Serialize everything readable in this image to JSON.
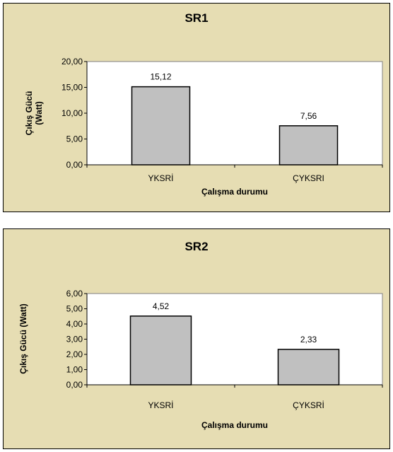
{
  "chart_data": [
    {
      "type": "bar",
      "title": "SR1",
      "xlabel": "Çalışma durumu",
      "ylabel_lines": [
        "Çıkış Gücü",
        "(Watt)"
      ],
      "categories": [
        "YKSRİ",
        "ÇYKSRI"
      ],
      "values": [
        15.12,
        7.56
      ],
      "data_labels": [
        "15,12",
        "7,56"
      ],
      "ylim": [
        0,
        20
      ],
      "yticks": [
        0,
        5,
        10,
        15,
        20
      ],
      "ytick_labels": [
        "0,00",
        "5,00",
        "10,00",
        "15,00",
        "20,00"
      ],
      "grid": false,
      "legend": "none",
      "colors": {
        "bar": "#c0c0c0",
        "plot_bg": "#ffffff",
        "panel_bg": "#e6ddb3"
      }
    },
    {
      "type": "bar",
      "title": "SR2",
      "xlabel": "Çalışma durumu",
      "ylabel_lines": [
        "Çıkış Gücü (Watt)"
      ],
      "categories": [
        "YKSRİ",
        "ÇYKSRİ"
      ],
      "values": [
        4.52,
        2.33
      ],
      "data_labels": [
        "4,52",
        "2,33"
      ],
      "ylim": [
        0,
        6
      ],
      "yticks": [
        0,
        1,
        2,
        3,
        4,
        5,
        6
      ],
      "ytick_labels": [
        "0,00",
        "1,00",
        "2,00",
        "3,00",
        "4,00",
        "5,00",
        "6,00"
      ],
      "grid": false,
      "legend": "none",
      "colors": {
        "bar": "#c0c0c0",
        "plot_bg": "#ffffff",
        "panel_bg": "#e6ddb3"
      }
    }
  ]
}
